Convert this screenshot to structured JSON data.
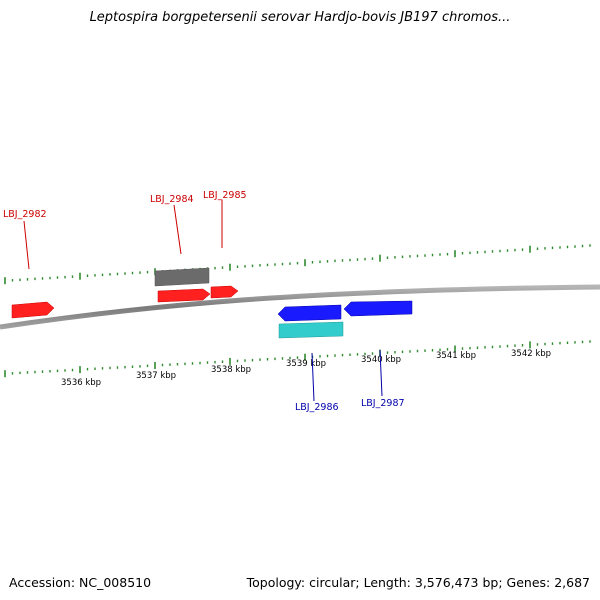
{
  "title": "Leptospira borgpetersenii serovar Hardjo-bovis JB197 chromos...",
  "footer": {
    "accession": "Accession: NC_008510",
    "summary": "Topology: circular; Length: 3,576,473 bp; Genes: 2,687"
  },
  "colors": {
    "backbone": "#8a8a8a",
    "tick": "#2f8a2f",
    "forward_gene": "#ff2020",
    "reverse_gene": "#1a1aff",
    "forward_label": "#cc0000",
    "reverse_label": "#0000aa",
    "other_forward": "#6b6b6b",
    "other_reverse": "#33cccc"
  },
  "scale_labels": [
    "3536 kbp",
    "3537 kbp",
    "3538 kbp",
    "3539 kbp",
    "3540 kbp",
    "3541 kbp",
    "3542 kbp"
  ],
  "genes": [
    {
      "name": "LBJ_2982",
      "strand": "forward",
      "color": "forward_gene",
      "labeled": true
    },
    {
      "name": "LBJ_2984",
      "strand": "forward",
      "color": "forward_gene",
      "labeled": true
    },
    {
      "name": "LBJ_2985",
      "strand": "forward",
      "color": "forward_gene",
      "labeled": true
    },
    {
      "name": "",
      "strand": "forward",
      "color": "other_forward",
      "labeled": false
    },
    {
      "name": "LBJ_2986",
      "strand": "reverse",
      "color": "reverse_gene",
      "labeled": true
    },
    {
      "name": "LBJ_2987",
      "strand": "reverse",
      "color": "reverse_gene",
      "labeled": true
    },
    {
      "name": "",
      "strand": "reverse",
      "color": "other_reverse",
      "labeled": false
    }
  ]
}
